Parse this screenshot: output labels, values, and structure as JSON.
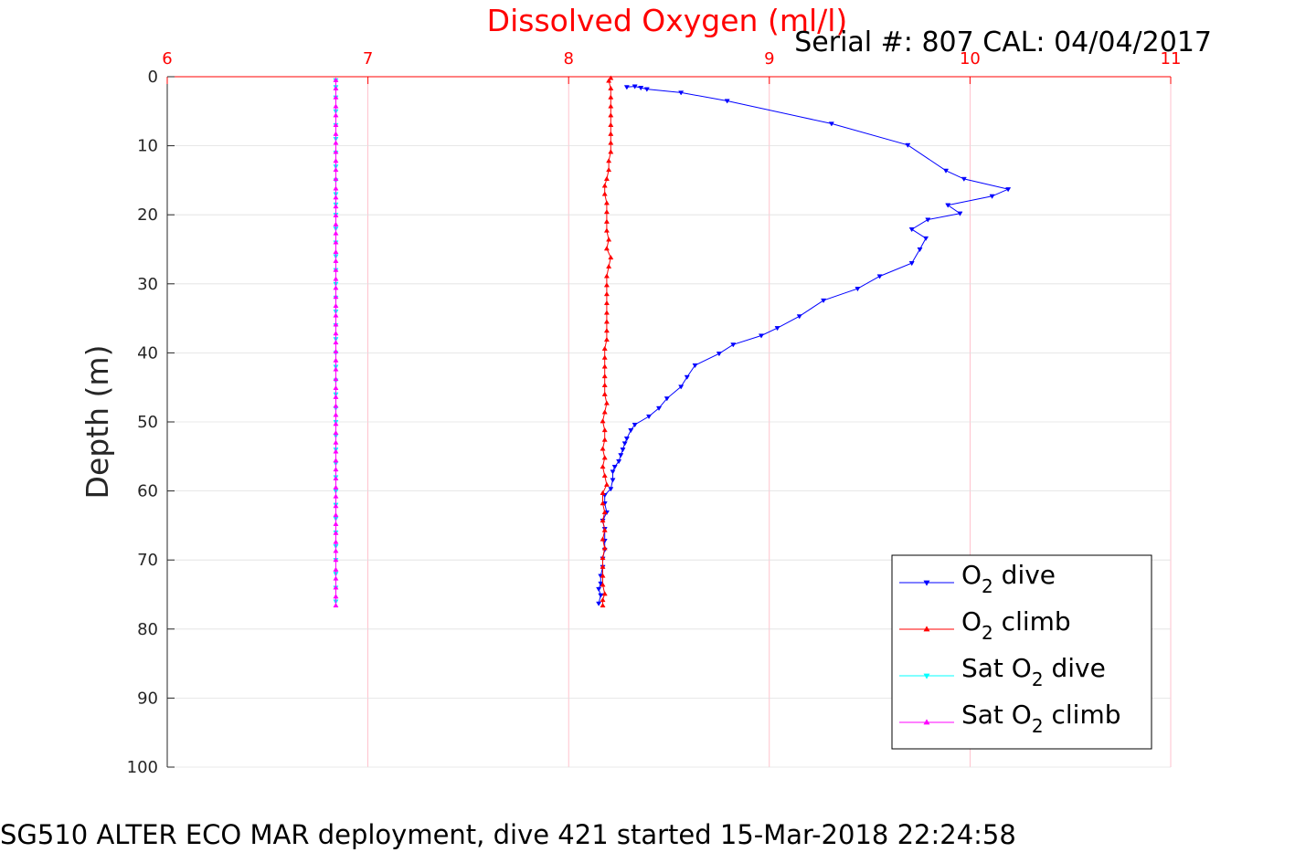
{
  "chart_data": {
    "type": "line",
    "title": "Dissolved Oxygen (ml/l)",
    "subtitle": "Serial #: 807  CAL: 04/04/2017",
    "ylabel": "Depth (m)",
    "xlabel": "",
    "xlim": [
      6,
      11
    ],
    "ylim": [
      0,
      100
    ],
    "y_reversed": true,
    "x_axis_position": "top",
    "x_ticks": [
      6,
      7,
      8,
      9,
      10,
      11
    ],
    "y_ticks": [
      0,
      10,
      20,
      30,
      40,
      50,
      60,
      70,
      80,
      90,
      100
    ],
    "grid": true,
    "legend_position": "bottom-right",
    "series": [
      {
        "name": "O2 dive",
        "legend_main": "O",
        "legend_sub": "2",
        "legend_rest": " dive",
        "color": "#0000ff",
        "marker": "triangle-down",
        "points": [
          [
            8.29,
            1.5
          ],
          [
            8.33,
            1.4
          ],
          [
            8.36,
            1.6
          ],
          [
            8.39,
            1.8
          ],
          [
            8.56,
            2.3
          ],
          [
            8.79,
            3.5
          ],
          [
            9.31,
            6.8
          ],
          [
            9.69,
            9.9
          ],
          [
            9.88,
            13.6
          ],
          [
            9.97,
            14.8
          ],
          [
            10.19,
            16.3
          ],
          [
            10.11,
            17.3
          ],
          [
            9.89,
            18.6
          ],
          [
            9.95,
            19.8
          ],
          [
            9.79,
            20.7
          ],
          [
            9.71,
            22.1
          ],
          [
            9.78,
            23.4
          ],
          [
            9.75,
            25.0
          ],
          [
            9.71,
            27.0
          ],
          [
            9.55,
            28.9
          ],
          [
            9.44,
            30.7
          ],
          [
            9.27,
            32.4
          ],
          [
            9.15,
            34.7
          ],
          [
            9.04,
            36.4
          ],
          [
            8.96,
            37.5
          ],
          [
            8.82,
            38.8
          ],
          [
            8.75,
            40.1
          ],
          [
            8.63,
            41.8
          ],
          [
            8.59,
            43.5
          ],
          [
            8.56,
            44.9
          ],
          [
            8.49,
            46.6
          ],
          [
            8.45,
            48.0
          ],
          [
            8.4,
            49.2
          ],
          [
            8.33,
            50.4
          ],
          [
            8.31,
            51.2
          ],
          [
            8.29,
            52.4
          ],
          [
            8.28,
            53.1
          ],
          [
            8.27,
            54.0
          ],
          [
            8.26,
            54.8
          ],
          [
            8.25,
            55.7
          ],
          [
            8.23,
            56.5
          ],
          [
            8.22,
            57.2
          ],
          [
            8.22,
            58.4
          ],
          [
            8.21,
            59.7
          ],
          [
            8.18,
            60.6
          ],
          [
            8.18,
            61.8
          ],
          [
            8.19,
            63.1
          ],
          [
            8.17,
            64.3
          ],
          [
            8.18,
            65.5
          ],
          [
            8.18,
            67.2
          ],
          [
            8.18,
            68.5
          ],
          [
            8.17,
            69.8
          ],
          [
            8.17,
            71.0
          ],
          [
            8.16,
            72.3
          ],
          [
            8.16,
            73.4
          ],
          [
            8.15,
            74.2
          ],
          [
            8.16,
            75.1
          ],
          [
            8.15,
            76.3
          ]
        ]
      },
      {
        "name": "O2 climb",
        "legend_main": "O",
        "legend_sub": "2",
        "legend_rest": " climb",
        "color": "#ff0000",
        "marker": "triangle-up",
        "points": [
          [
            8.17,
            76.6
          ],
          [
            8.17,
            75.8
          ],
          [
            8.18,
            74.9
          ],
          [
            8.17,
            73.6
          ],
          [
            8.17,
            72.3
          ],
          [
            8.17,
            71.0
          ],
          [
            8.17,
            69.7
          ],
          [
            8.18,
            68.3
          ],
          [
            8.17,
            67.0
          ],
          [
            8.18,
            65.7
          ],
          [
            8.17,
            64.3
          ],
          [
            8.18,
            63.1
          ],
          [
            8.17,
            61.8
          ],
          [
            8.17,
            60.3
          ],
          [
            8.19,
            59.1
          ],
          [
            8.18,
            57.8
          ],
          [
            8.17,
            56.5
          ],
          [
            8.18,
            55.2
          ],
          [
            8.17,
            53.9
          ],
          [
            8.18,
            52.6
          ],
          [
            8.18,
            51.2
          ],
          [
            8.17,
            49.9
          ],
          [
            8.18,
            48.6
          ],
          [
            8.19,
            47.3
          ],
          [
            8.18,
            46.0
          ],
          [
            8.18,
            44.7
          ],
          [
            8.18,
            43.4
          ],
          [
            8.18,
            42.0
          ],
          [
            8.18,
            40.7
          ],
          [
            8.18,
            39.4
          ],
          [
            8.19,
            38.1
          ],
          [
            8.19,
            36.8
          ],
          [
            8.19,
            35.5
          ],
          [
            8.19,
            34.2
          ],
          [
            8.19,
            32.8
          ],
          [
            8.19,
            31.5
          ],
          [
            8.19,
            30.2
          ],
          [
            8.19,
            28.9
          ],
          [
            8.2,
            27.5
          ],
          [
            8.21,
            26.2
          ],
          [
            8.19,
            24.9
          ],
          [
            8.2,
            23.6
          ],
          [
            8.19,
            22.3
          ],
          [
            8.19,
            21.0
          ],
          [
            8.19,
            19.6
          ],
          [
            8.19,
            18.3
          ],
          [
            8.18,
            17.0
          ],
          [
            8.18,
            15.8
          ],
          [
            8.19,
            14.8
          ],
          [
            8.2,
            13.5
          ],
          [
            8.2,
            12.2
          ],
          [
            8.21,
            10.9
          ],
          [
            8.21,
            9.6
          ],
          [
            8.21,
            8.3
          ],
          [
            8.21,
            7.0
          ],
          [
            8.21,
            5.6
          ],
          [
            8.21,
            4.3
          ],
          [
            8.21,
            3.0
          ],
          [
            8.21,
            1.7
          ],
          [
            8.2,
            0.6
          ],
          [
            8.21,
            0.2
          ]
        ]
      },
      {
        "name": "Sat O2 dive",
        "legend_main": "Sat O",
        "legend_sub": "2",
        "legend_rest": " dive",
        "color": "#00ffff",
        "marker": "triangle-down",
        "points": [
          [
            6.84,
            0.5
          ],
          [
            6.84,
            1.5
          ],
          [
            6.84,
            3.0
          ],
          [
            6.84,
            5.0
          ],
          [
            6.84,
            7.0
          ],
          [
            6.84,
            9.0
          ],
          [
            6.84,
            11.0
          ],
          [
            6.84,
            13.0
          ],
          [
            6.84,
            15.0
          ],
          [
            6.84,
            17.0
          ],
          [
            6.84,
            18.5
          ],
          [
            6.84,
            20.0
          ],
          [
            6.84,
            22.0
          ],
          [
            6.84,
            24.0
          ],
          [
            6.84,
            26.0
          ],
          [
            6.84,
            28.0
          ],
          [
            6.84,
            30.0
          ],
          [
            6.84,
            32.0
          ],
          [
            6.84,
            34.0
          ],
          [
            6.84,
            36.0
          ],
          [
            6.84,
            38.0
          ],
          [
            6.84,
            40.0
          ],
          [
            6.84,
            42.0
          ],
          [
            6.84,
            44.0
          ],
          [
            6.84,
            46.0
          ],
          [
            6.84,
            48.0
          ],
          [
            6.84,
            50.0
          ],
          [
            6.84,
            52.0
          ],
          [
            6.84,
            54.0
          ],
          [
            6.84,
            56.0
          ],
          [
            6.84,
            58.0
          ],
          [
            6.84,
            60.0
          ],
          [
            6.84,
            62.0
          ],
          [
            6.84,
            64.0
          ],
          [
            6.84,
            66.0
          ],
          [
            6.84,
            68.0
          ],
          [
            6.84,
            70.0
          ],
          [
            6.84,
            72.0
          ],
          [
            6.84,
            74.0
          ],
          [
            6.84,
            76.0
          ]
        ]
      },
      {
        "name": "Sat O2 climb",
        "legend_main": "Sat O",
        "legend_sub": "2",
        "legend_rest": " climb",
        "color": "#ff00ff",
        "marker": "triangle-up",
        "points": [
          [
            6.84,
            76.6
          ],
          [
            6.84,
            75.3
          ],
          [
            6.84,
            74.0
          ],
          [
            6.84,
            72.7
          ],
          [
            6.84,
            71.4
          ],
          [
            6.84,
            70.0
          ],
          [
            6.84,
            68.7
          ],
          [
            6.84,
            67.4
          ],
          [
            6.84,
            66.1
          ],
          [
            6.84,
            64.8
          ],
          [
            6.84,
            63.5
          ],
          [
            6.84,
            62.2
          ],
          [
            6.84,
            60.8
          ],
          [
            6.84,
            59.5
          ],
          [
            6.84,
            58.2
          ],
          [
            6.84,
            56.9
          ],
          [
            6.84,
            55.6
          ],
          [
            6.84,
            54.3
          ],
          [
            6.84,
            53.0
          ],
          [
            6.84,
            51.6
          ],
          [
            6.84,
            50.3
          ],
          [
            6.84,
            49.0
          ],
          [
            6.84,
            47.7
          ],
          [
            6.84,
            46.4
          ],
          [
            6.84,
            45.1
          ],
          [
            6.84,
            43.8
          ],
          [
            6.84,
            42.4
          ],
          [
            6.84,
            41.1
          ],
          [
            6.84,
            39.8
          ],
          [
            6.84,
            38.5
          ],
          [
            6.84,
            37.2
          ],
          [
            6.84,
            35.9
          ],
          [
            6.84,
            34.6
          ],
          [
            6.84,
            33.2
          ],
          [
            6.84,
            31.9
          ],
          [
            6.84,
            30.6
          ],
          [
            6.84,
            29.3
          ],
          [
            6.84,
            28.0
          ],
          [
            6.84,
            26.7
          ],
          [
            6.84,
            25.4
          ],
          [
            6.84,
            24.0
          ],
          [
            6.84,
            22.7
          ],
          [
            6.84,
            21.4
          ],
          [
            6.84,
            20.1
          ],
          [
            6.84,
            18.8
          ],
          [
            6.84,
            17.5
          ],
          [
            6.84,
            16.2
          ],
          [
            6.84,
            14.8
          ],
          [
            6.84,
            13.5
          ],
          [
            6.84,
            12.2
          ],
          [
            6.84,
            10.9
          ],
          [
            6.84,
            9.6
          ],
          [
            6.84,
            8.3
          ],
          [
            6.84,
            7.0
          ],
          [
            6.84,
            5.6
          ],
          [
            6.84,
            4.3
          ],
          [
            6.84,
            3.0
          ],
          [
            6.84,
            1.7
          ],
          [
            6.84,
            0.5
          ]
        ]
      }
    ]
  },
  "footer": "SG510 ALTER ECO MAR deployment, dive 421 started 15-Mar-2018 22:24:58"
}
